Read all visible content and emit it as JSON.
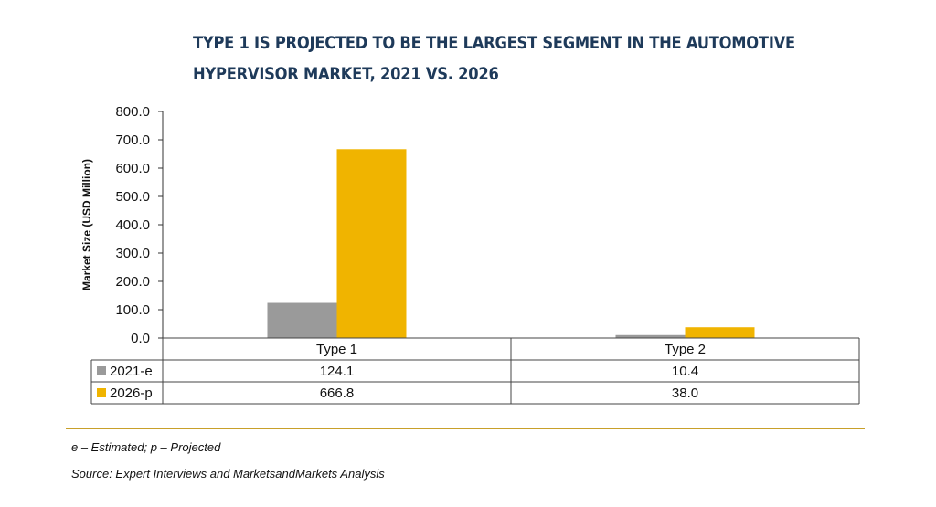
{
  "title_lines": [
    "TYPE 1 IS PROJECTED TO BE THE LARGEST SEGMENT IN THE AUTOMOTIVE",
    "HYPERVISOR MARKET, 2021 VS. 2026"
  ],
  "footnote": "e – Estimated; p – Projected",
  "source": "Source: Expert Interviews and MarketsandMarkets Analysis",
  "colors": {
    "series_2021": "#9a9a9a",
    "series_2026": "#f0b400",
    "rule": "#c8a02a",
    "title": "#1e3a5a"
  },
  "chart_data": {
    "type": "bar",
    "categories": [
      "Type 1",
      "Type 2"
    ],
    "series": [
      {
        "name": "2021-e",
        "values": [
          124.1,
          10.4
        ]
      },
      {
        "name": "2026-p",
        "values": [
          666.8,
          38.0
        ]
      }
    ],
    "value_labels": [
      [
        "124.1",
        "10.4"
      ],
      [
        "666.8",
        "38.0"
      ]
    ],
    "ylabel": "Market Size (USD Million)",
    "ylim": [
      0,
      800
    ],
    "yticks": [
      "0.0",
      "100.0",
      "200.0",
      "300.0",
      "400.0",
      "500.0",
      "600.0",
      "700.0",
      "800.0"
    ],
    "grid": false,
    "legend": "data-table"
  }
}
